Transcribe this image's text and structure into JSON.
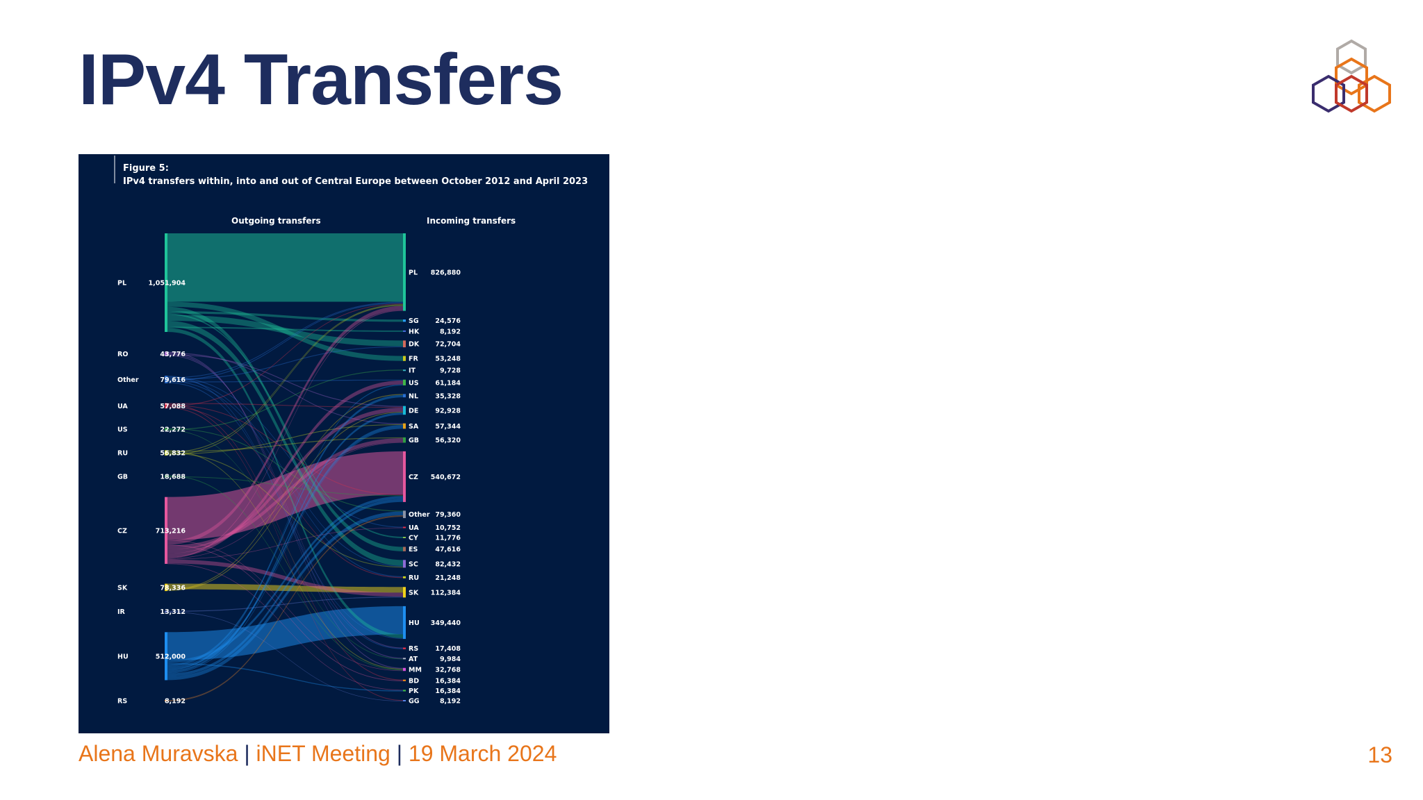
{
  "slide": {
    "title": "IPv4 Transfers",
    "page_number": "13",
    "footer": {
      "author": "Alena Muravska",
      "separator": "|",
      "event": "iNET Meeting",
      "date": "19 March 2024"
    }
  },
  "colors": {
    "title": "#1e2d5e",
    "accent": "#e8751a",
    "figure_background": "#011a40"
  },
  "chart_data": {
    "type": "sankey",
    "figure_label": "Figure 5:",
    "title": "IPv4 transfers within, into and out of Central Europe between October 2012 and April 2023",
    "left_header": "Outgoing transfers",
    "right_header": "Incoming transfers",
    "outgoing": [
      {
        "code": "PL",
        "value": 1051904,
        "label": "1,051,904",
        "color": "#1fc49a"
      },
      {
        "code": "RO",
        "value": 43776,
        "label": "43,776",
        "color": "#a061c9"
      },
      {
        "code": "Other",
        "value": 79616,
        "label": "79,616",
        "color": "#2a6fd1"
      },
      {
        "code": "UA",
        "value": 57088,
        "label": "57,088",
        "color": "#e0314b"
      },
      {
        "code": "US",
        "value": 22272,
        "label": "22,272",
        "color": "#3fb54a"
      },
      {
        "code": "RU",
        "value": 56832,
        "label": "56,832",
        "color": "#c9d020"
      },
      {
        "code": "GB",
        "value": 18688,
        "label": "18,688",
        "color": "#2f9e44"
      },
      {
        "code": "CZ",
        "value": 713216,
        "label": "713,216",
        "color": "#e5579e"
      },
      {
        "code": "SK",
        "value": 78336,
        "label": "78,336",
        "color": "#f0d21a"
      },
      {
        "code": "IR",
        "value": 13312,
        "label": "13,312",
        "color": "#6a7bd8"
      },
      {
        "code": "HU",
        "value": 512000,
        "label": "512,000",
        "color": "#1e8ef0"
      },
      {
        "code": "RS",
        "value": 8192,
        "label": "8,192",
        "color": "#e07f2a"
      }
    ],
    "incoming": [
      {
        "code": "PL",
        "value": 826880,
        "label": "826,880",
        "color": "#1fc49a"
      },
      {
        "code": "SG",
        "value": 24576,
        "label": "24,576",
        "color": "#2a9df4"
      },
      {
        "code": "HK",
        "value": 8192,
        "label": "8,192",
        "color": "#4a6fe0"
      },
      {
        "code": "DK",
        "value": 72704,
        "label": "72,704",
        "color": "#d06a5c"
      },
      {
        "code": "FR",
        "value": 53248,
        "label": "53,248",
        "color": "#c9c91f"
      },
      {
        "code": "IT",
        "value": 9728,
        "label": "9,728",
        "color": "#3bb0c0"
      },
      {
        "code": "US",
        "value": 61184,
        "label": "61,184",
        "color": "#3fb54a"
      },
      {
        "code": "NL",
        "value": 35328,
        "label": "35,328",
        "color": "#2a6fd1"
      },
      {
        "code": "DE",
        "value": 92928,
        "label": "92,928",
        "color": "#19b9d6"
      },
      {
        "code": "SA",
        "value": 57344,
        "label": "57,344",
        "color": "#e6a21a"
      },
      {
        "code": "GB",
        "value": 56320,
        "label": "56,320",
        "color": "#2f9e44"
      },
      {
        "code": "CZ",
        "value": 540672,
        "label": "540,672",
        "color": "#e5579e"
      },
      {
        "code": "Other",
        "value": 79360,
        "label": "79,360",
        "color": "#8a93a6"
      },
      {
        "code": "UA",
        "value": 10752,
        "label": "10,752",
        "color": "#e0314b"
      },
      {
        "code": "CY",
        "value": 11776,
        "label": "11,776",
        "color": "#8ac04a"
      },
      {
        "code": "ES",
        "value": 47616,
        "label": "47,616",
        "color": "#a56a5a"
      },
      {
        "code": "SC",
        "value": 82432,
        "label": "82,432",
        "color": "#8d6bd6"
      },
      {
        "code": "RU",
        "value": 21248,
        "label": "21,248",
        "color": "#c9d020"
      },
      {
        "code": "SK",
        "value": 112384,
        "label": "112,384",
        "color": "#f0d21a"
      },
      {
        "code": "HU",
        "value": 349440,
        "label": "349,440",
        "color": "#1e8ef0"
      },
      {
        "code": "RS",
        "value": 17408,
        "label": "17,408",
        "color": "#e0314b"
      },
      {
        "code": "AT",
        "value": 9984,
        "label": "9,984",
        "color": "#b0b8c8"
      },
      {
        "code": "MM",
        "value": 32768,
        "label": "32,768",
        "color": "#d34fd9"
      },
      {
        "code": "BD",
        "value": 16384,
        "label": "16,384",
        "color": "#f08a1a"
      },
      {
        "code": "PK",
        "value": 16384,
        "label": "16,384",
        "color": "#3fb54a"
      },
      {
        "code": "GG",
        "value": 8192,
        "label": "8,192",
        "color": "#5a86e8"
      }
    ],
    "main_flows": [
      {
        "from": "PL",
        "to": "PL",
        "value": 730000
      },
      {
        "from": "CZ",
        "to": "CZ",
        "value": 460000
      },
      {
        "from": "HU",
        "to": "HU",
        "value": 300000
      },
      {
        "from": "SK",
        "to": "SK",
        "value": 60000
      }
    ]
  }
}
